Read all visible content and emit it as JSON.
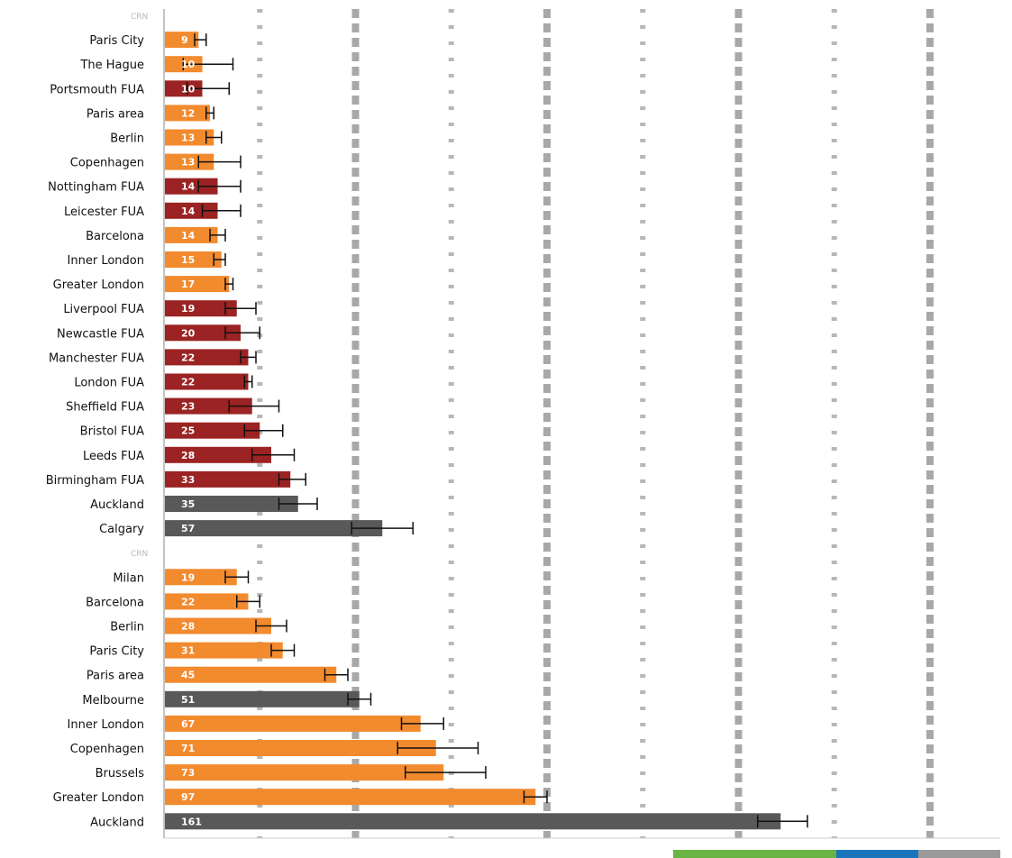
{
  "colors": {
    "orange": "#f28a2e",
    "red": "#9b2323",
    "dark": "#595959",
    "grid": "#999999",
    "axis": "#888888",
    "error_bar": "#111111",
    "legend": [
      "#6ab443",
      "#1a75bc",
      "#9a9a9a"
    ]
  },
  "chart_data": [
    {
      "type": "bar",
      "orientation": "horizontal",
      "group_label": "CRN",
      "xlim": [
        0,
        200
      ],
      "grid": "dashed vertical",
      "categories": [
        "Paris City",
        "The Hague",
        "Portsmouth FUA",
        "Paris area",
        "Berlin",
        "Copenhagen",
        "Nottingham FUA",
        "Leicester FUA",
        "Barcelona",
        "Inner London",
        "Greater London",
        "Liverpool FUA",
        "Newcastle FUA",
        "Manchester FUA",
        "London FUA",
        "Sheffield FUA",
        "Bristol FUA",
        "Leeds FUA",
        "Birmingham FUA",
        "Auckland",
        "Calgary"
      ],
      "values": [
        9,
        10,
        10,
        12,
        13,
        13,
        14,
        14,
        14,
        15,
        17,
        19,
        20,
        22,
        22,
        23,
        25,
        28,
        33,
        35,
        57
      ],
      "error_low": [
        8,
        5,
        6,
        11,
        11,
        9,
        9,
        10,
        12,
        13,
        16,
        16,
        16,
        20,
        21,
        17,
        21,
        23,
        30,
        30,
        49
      ],
      "error_high": [
        11,
        18,
        17,
        13,
        15,
        20,
        20,
        20,
        16,
        16,
        18,
        24,
        25,
        24,
        23,
        30,
        31,
        34,
        37,
        40,
        65
      ],
      "color_keys": [
        "orange",
        "orange",
        "red",
        "orange",
        "orange",
        "orange",
        "red",
        "red",
        "orange",
        "orange",
        "orange",
        "red",
        "red",
        "red",
        "red",
        "red",
        "red",
        "red",
        "red",
        "dark",
        "dark"
      ]
    },
    {
      "type": "bar",
      "orientation": "horizontal",
      "group_label": "CRN",
      "xlim": [
        0,
        200
      ],
      "grid": "dashed vertical",
      "categories": [
        "Milan",
        "Barcelona",
        "Berlin",
        "Paris City",
        "Paris area",
        "Melbourne",
        "Inner London",
        "Copenhagen",
        "Brussels",
        "Greater London",
        "Auckland"
      ],
      "values": [
        19,
        22,
        28,
        31,
        45,
        51,
        67,
        71,
        73,
        97,
        161
      ],
      "error_low": [
        16,
        19,
        24,
        28,
        42,
        48,
        62,
        61,
        63,
        94,
        155
      ],
      "error_high": [
        22,
        25,
        32,
        34,
        48,
        54,
        73,
        82,
        84,
        100,
        168
      ],
      "color_keys": [
        "orange",
        "orange",
        "orange",
        "orange",
        "orange",
        "dark",
        "orange",
        "orange",
        "orange",
        "orange",
        "dark"
      ]
    }
  ]
}
